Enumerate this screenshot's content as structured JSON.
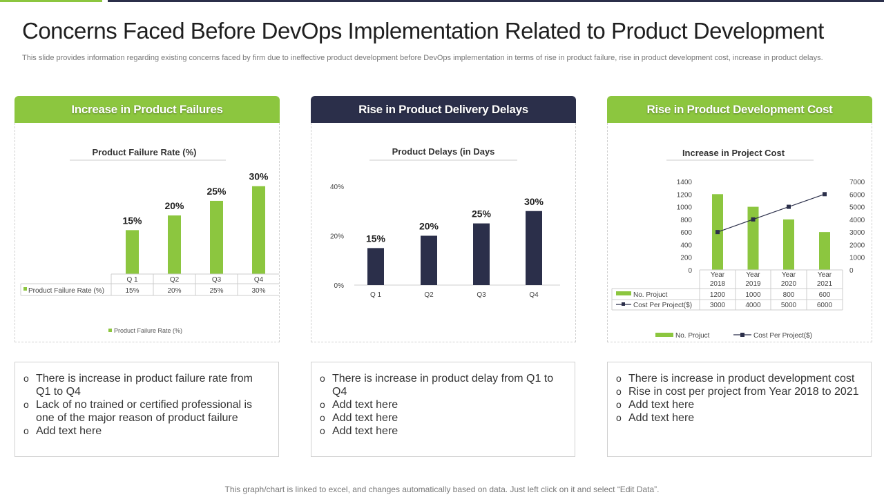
{
  "title": "Concerns Faced Before DevOps Implementation Related to Product Development",
  "subtitle": "This slide provides information regarding existing concerns faced by firm due to ineffective product development before DevOps implementation in terms of rise in product failure, rise in product development cost, increase in product delays.",
  "panels": [
    {
      "heading": "Increase in Product Failures",
      "bullets": [
        "There is increase in product failure rate from Q1 to Q4",
        "Lack of no trained or certified professional is one of the major reason of product failure",
        "Add text here"
      ]
    },
    {
      "heading": "Rise in Product Delivery Delays",
      "bullets": [
        "There is increase in product delay from Q1 to Q4",
        "Add text here",
        "Add text here",
        "Add text here"
      ]
    },
    {
      "heading": "Rise in Product Development Cost",
      "bullets": [
        "There is increase in product development cost",
        "Rise in cost per project from Year 2018 to 2021",
        "Add text here",
        "Add text here"
      ]
    }
  ],
  "footer": "This graph/chart is linked to excel,  and changes automatically based on data. Just left click on it and select “Edit Data”.",
  "colors": {
    "green": "#8cc63f",
    "navy": "#2b2f4a"
  },
  "chart_data": [
    {
      "type": "bar",
      "title": "Product Failure Rate (%)",
      "categories": [
        "Q 1",
        "Q2",
        "Q3",
        "Q4"
      ],
      "series": [
        {
          "name": "Product Failure Rate (%)",
          "values": [
            15,
            20,
            25,
            30
          ]
        }
      ],
      "data_labels": [
        "15%",
        "20%",
        "25%",
        "30%"
      ],
      "table_values": [
        "15%",
        "20%",
        "25%",
        "30%"
      ],
      "ylim": [
        0,
        33
      ],
      "legend": "Product Failure Rate (%)"
    },
    {
      "type": "bar",
      "title": "Product Delays (in Days",
      "categories": [
        "Q 1",
        "Q2",
        "Q3",
        "Q4"
      ],
      "series": [
        {
          "name": "Product Delays",
          "values": [
            15,
            20,
            25,
            30
          ]
        }
      ],
      "data_labels": [
        "15%",
        "20%",
        "25%",
        "30%"
      ],
      "yticks": [
        {
          "value": 0,
          "label": "0%"
        },
        {
          "value": 20,
          "label": "20%"
        },
        {
          "value": 40,
          "label": "40%"
        }
      ],
      "ylim": [
        0,
        40
      ]
    },
    {
      "type": "bar",
      "title": "Increase in Project Cost",
      "categories": [
        "Year 2018",
        "Year 2019",
        "Year 2020",
        "Year 2021"
      ],
      "series": [
        {
          "name": "No. Projuct",
          "type": "bar",
          "axis": "left",
          "values": [
            1200,
            1000,
            800,
            600
          ],
          "labels": [
            "1200",
            "1000",
            "800",
            "600"
          ]
        },
        {
          "name": "Cost Per Project($)",
          "type": "line",
          "axis": "right",
          "values": [
            3000,
            4000,
            5000,
            6000
          ],
          "labels": [
            "3000",
            "4000",
            "5000",
            "6000"
          ]
        }
      ],
      "left_ticks": [
        "0",
        "200",
        "400",
        "600",
        "800",
        "1000",
        "1200",
        "1400"
      ],
      "right_ticks": [
        "0",
        "1000",
        "2000",
        "3000",
        "4000",
        "5000",
        "6000",
        "7000"
      ],
      "ylim": [
        0,
        1400
      ],
      "y2lim": [
        0,
        7000
      ],
      "legend": [
        "No. Projuct",
        "Cost Per Project($)"
      ]
    }
  ]
}
